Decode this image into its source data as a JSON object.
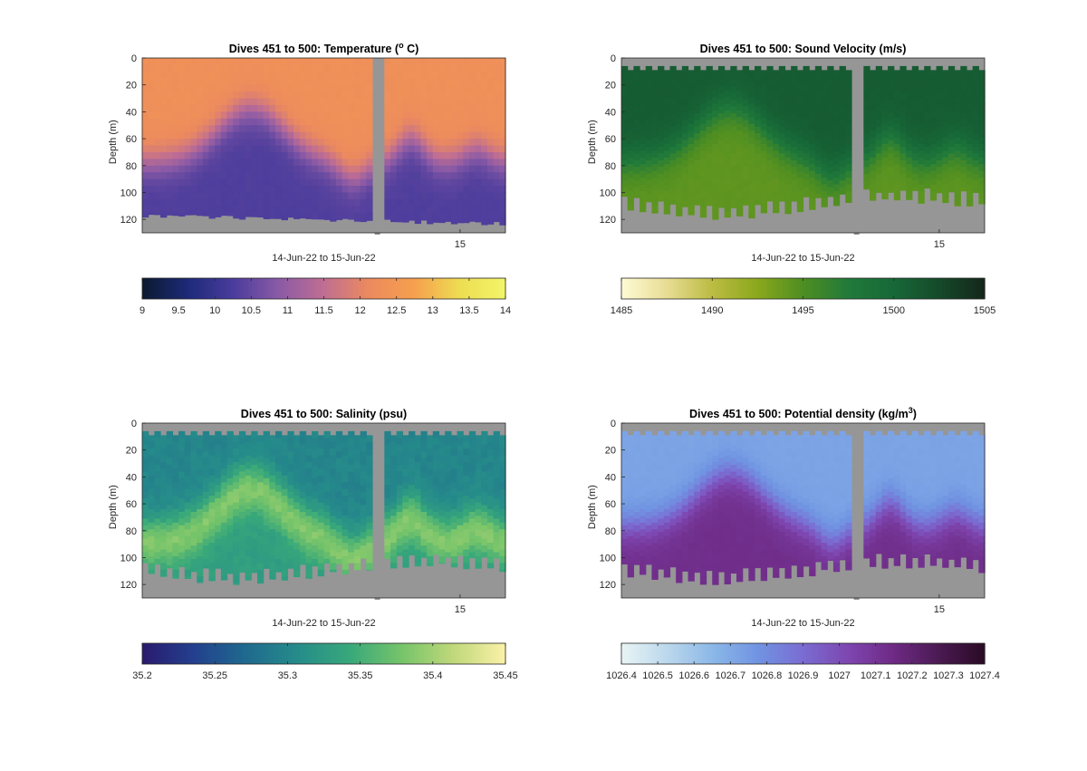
{
  "chart_data": [
    {
      "type": "heatmap",
      "title": "Dives 451 to 500: Temperature (",
      "title_super": "o",
      "title_after": " C)",
      "xlabel": "14-Jun-22 to 15-Jun-22",
      "ylabel": "Depth (m)",
      "xtick_labels": [
        "15"
      ],
      "yticks": [
        0,
        20,
        40,
        60,
        80,
        100,
        120
      ],
      "ylim": [
        0,
        130
      ],
      "y_reversed": true,
      "colormap": [
        "#0b1a2e",
        "#1c2a7a",
        "#4a3c9c",
        "#8a5aa6",
        "#c06e92",
        "#ec8a5e",
        "#f6a04e",
        "#eedd52",
        "#f2f56a"
      ],
      "clim": [
        9,
        14
      ],
      "colorbar_ticks": [
        "9",
        "9.5",
        "10",
        "10.5",
        "11",
        "11.5",
        "12",
        "12.5",
        "13",
        "13.5",
        "14"
      ],
      "surface_value": 12.3,
      "bottom_value": 10.3,
      "gap_color": "#969696",
      "no_data_color": "#969696"
    },
    {
      "type": "heatmap",
      "title": "Dives 451 to 500: Sound Velocity (m/s)",
      "xlabel": "14-Jun-22 to 15-Jun-22",
      "ylabel": "Depth (m)",
      "xtick_labels": [
        "15"
      ],
      "yticks": [
        0,
        20,
        40,
        60,
        80,
        100,
        120
      ],
      "ylim": [
        0,
        130
      ],
      "y_reversed": true,
      "colormap": [
        "#fdfbd4",
        "#e8dc94",
        "#bcbc42",
        "#8aa81c",
        "#4e8e22",
        "#217a3a",
        "#176838",
        "#154a2a",
        "#15261a"
      ],
      "clim": [
        1485,
        1505
      ],
      "colorbar_ticks": [
        "1485",
        "1490",
        "1495",
        "1500",
        "1505"
      ],
      "surface_value": 1501,
      "bottom_value": 1494.3,
      "gap_color": "#969696",
      "no_data_color": "#969696"
    },
    {
      "type": "heatmap",
      "title": "Dives 451 to 500: Salinity (psu)",
      "xlabel": "14-Jun-22 to 15-Jun-22",
      "ylabel": "Depth (m)",
      "xtick_labels": [
        "15"
      ],
      "yticks": [
        0,
        20,
        40,
        60,
        80,
        100,
        120
      ],
      "ylim": [
        0,
        130
      ],
      "y_reversed": true,
      "colormap": [
        "#2a1a6e",
        "#23408e",
        "#1f6a8e",
        "#268c8a",
        "#38a87a",
        "#76c46a",
        "#c0d87a",
        "#fbf1a8"
      ],
      "clim": [
        35.2,
        35.45
      ],
      "colorbar_ticks": [
        "35.2",
        "35.25",
        "35.3",
        "35.35",
        "35.4",
        "35.45"
      ],
      "surface_value": 35.3,
      "bottom_value": 35.345,
      "gap_color": "#969696",
      "no_data_color": "#969696"
    },
    {
      "type": "heatmap",
      "title": "Dives 451 to 500: Potential density (kg/m",
      "title_super": "3",
      "title_after": ")",
      "xlabel": "14-Jun-22 to 15-Jun-22",
      "ylabel": "Depth (m)",
      "xtick_labels": [
        "15"
      ],
      "yticks": [
        0,
        20,
        40,
        60,
        80,
        100,
        120
      ],
      "ylim": [
        0,
        130
      ],
      "y_reversed": true,
      "colormap": [
        "#e8f5f5",
        "#bcd8ec",
        "#8cb8e8",
        "#7094e2",
        "#7a6cd2",
        "#7e46b0",
        "#6e2a84",
        "#4a1a52",
        "#2a0a24"
      ],
      "clim": [
        1026.4,
        1027.4
      ],
      "colorbar_ticks": [
        "1026.4",
        "1026.5",
        "1026.6",
        "1026.7",
        "1026.8",
        "1026.9",
        "1027",
        "1027.1",
        "1027.2",
        "1027.3",
        "1027.4"
      ],
      "surface_value": 1026.72,
      "bottom_value": 1027.13,
      "gap_color": "#969696",
      "no_data_color": "#969696"
    }
  ]
}
